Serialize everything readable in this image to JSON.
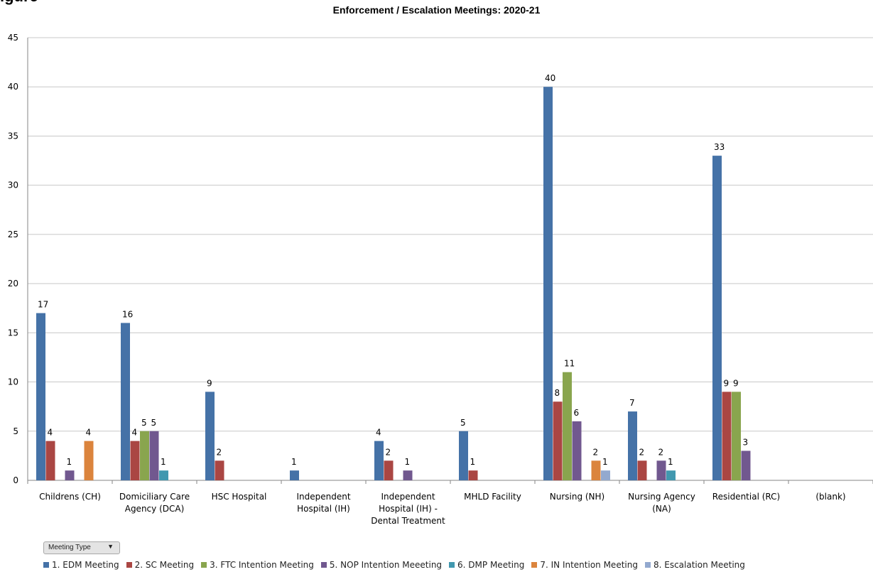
{
  "figure_label": "igure",
  "filter_button": {
    "label": "Meeting Type",
    "arrow": "▼"
  },
  "chart_data": {
    "type": "bar",
    "title": "Enforcement / Escalation Meetings: 2020-21",
    "xlabel": "",
    "ylabel": "",
    "ylim": [
      0,
      45
    ],
    "yticks": [
      0,
      5,
      10,
      15,
      20,
      25,
      30,
      35,
      40,
      45
    ],
    "grid": true,
    "legend_position": "bottom",
    "categories": [
      [
        "Childrens (CH)"
      ],
      [
        "Domiciliary Care",
        "Agency (DCA)"
      ],
      [
        "HSC Hospital"
      ],
      [
        "Independent",
        "Hospital (IH)"
      ],
      [
        "Independent",
        "Hospital (IH) -",
        "Dental Treatment"
      ],
      [
        "MHLD Facility"
      ],
      [
        "Nursing (NH)"
      ],
      [
        "Nursing Agency",
        "(NA)"
      ],
      [
        "Residential (RC)"
      ],
      [
        "(blank)"
      ]
    ],
    "series": [
      {
        "name": "1. EDM Meeting",
        "color": "#4572a7",
        "values": [
          17,
          16,
          9,
          1,
          4,
          5,
          40,
          7,
          33,
          null
        ]
      },
      {
        "name": "2. SC Meeting",
        "color": "#aa4643",
        "values": [
          4,
          4,
          2,
          null,
          2,
          1,
          8,
          2,
          9,
          null
        ]
      },
      {
        "name": "3. FTC Intention Meeting",
        "color": "#89a54e",
        "values": [
          null,
          5,
          null,
          null,
          null,
          null,
          11,
          null,
          9,
          null
        ]
      },
      {
        "name": "5. NOP Intention Meeeting",
        "color": "#71588f",
        "values": [
          1,
          5,
          null,
          null,
          1,
          null,
          6,
          2,
          3,
          null
        ]
      },
      {
        "name": "6. DMP Meeting",
        "color": "#4198af",
        "values": [
          null,
          1,
          null,
          null,
          null,
          null,
          null,
          1,
          null,
          null
        ]
      },
      {
        "name": "7. IN Intention Meeting",
        "color": "#db843d",
        "values": [
          4,
          null,
          null,
          null,
          null,
          null,
          2,
          null,
          null,
          null
        ]
      },
      {
        "name": "8. Escalation Meeting",
        "color": "#93a9cf",
        "values": [
          null,
          null,
          null,
          null,
          null,
          null,
          1,
          null,
          null,
          null
        ]
      }
    ]
  }
}
